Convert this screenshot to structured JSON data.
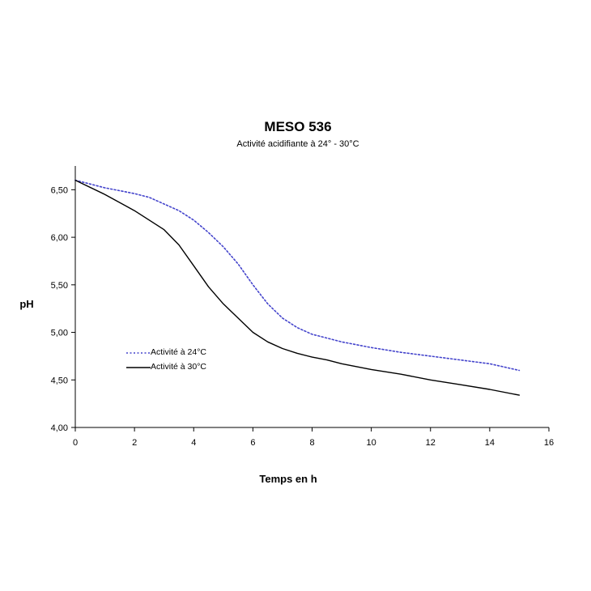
{
  "chart_data": {
    "type": "line",
    "title": "MESO 536",
    "subtitle": "Activité acidifiante à 24° - 30°C",
    "xlabel": "Temps en h",
    "ylabel": "pH",
    "xlim": [
      0,
      16
    ],
    "ylim": [
      4.0,
      6.75
    ],
    "x_ticks": [
      "0",
      "2",
      "4",
      "6",
      "8",
      "10",
      "12",
      "14",
      "16"
    ],
    "x_tick_values": [
      0,
      2,
      4,
      6,
      8,
      10,
      12,
      14,
      16
    ],
    "y_ticks": [
      "4,00",
      "4,50",
      "5,00",
      "5,50",
      "6,00",
      "6,50"
    ],
    "y_tick_values": [
      4.0,
      4.5,
      5.0,
      5.5,
      6.0,
      6.5
    ],
    "grid": false,
    "legend_position": "left-middle",
    "series": [
      {
        "name": "Activité à 24°C",
        "color": "#4444cc",
        "style": "dotted",
        "x": [
          0,
          1,
          2,
          2.5,
          3,
          3.5,
          4,
          4.5,
          5,
          5.5,
          6,
          6.5,
          7,
          7.5,
          8,
          8.5,
          9,
          10,
          11,
          12,
          13,
          14,
          15
        ],
        "y": [
          6.6,
          6.52,
          6.46,
          6.42,
          6.35,
          6.28,
          6.18,
          6.05,
          5.9,
          5.72,
          5.5,
          5.3,
          5.15,
          5.05,
          4.98,
          4.94,
          4.9,
          4.84,
          4.79,
          4.75,
          4.71,
          4.67,
          4.6
        ]
      },
      {
        "name": "Activité à 30°C",
        "color": "#000000",
        "style": "solid",
        "x": [
          0,
          1,
          2,
          3,
          3.5,
          4,
          4.5,
          5,
          5.5,
          6,
          6.5,
          7,
          7.5,
          8,
          8.5,
          9,
          10,
          11,
          12,
          13,
          14,
          15
        ],
        "y": [
          6.6,
          6.45,
          6.28,
          6.08,
          5.92,
          5.7,
          5.48,
          5.3,
          5.15,
          5.0,
          4.9,
          4.83,
          4.78,
          4.74,
          4.71,
          4.67,
          4.61,
          4.56,
          4.5,
          4.45,
          4.4,
          4.34
        ]
      }
    ]
  }
}
